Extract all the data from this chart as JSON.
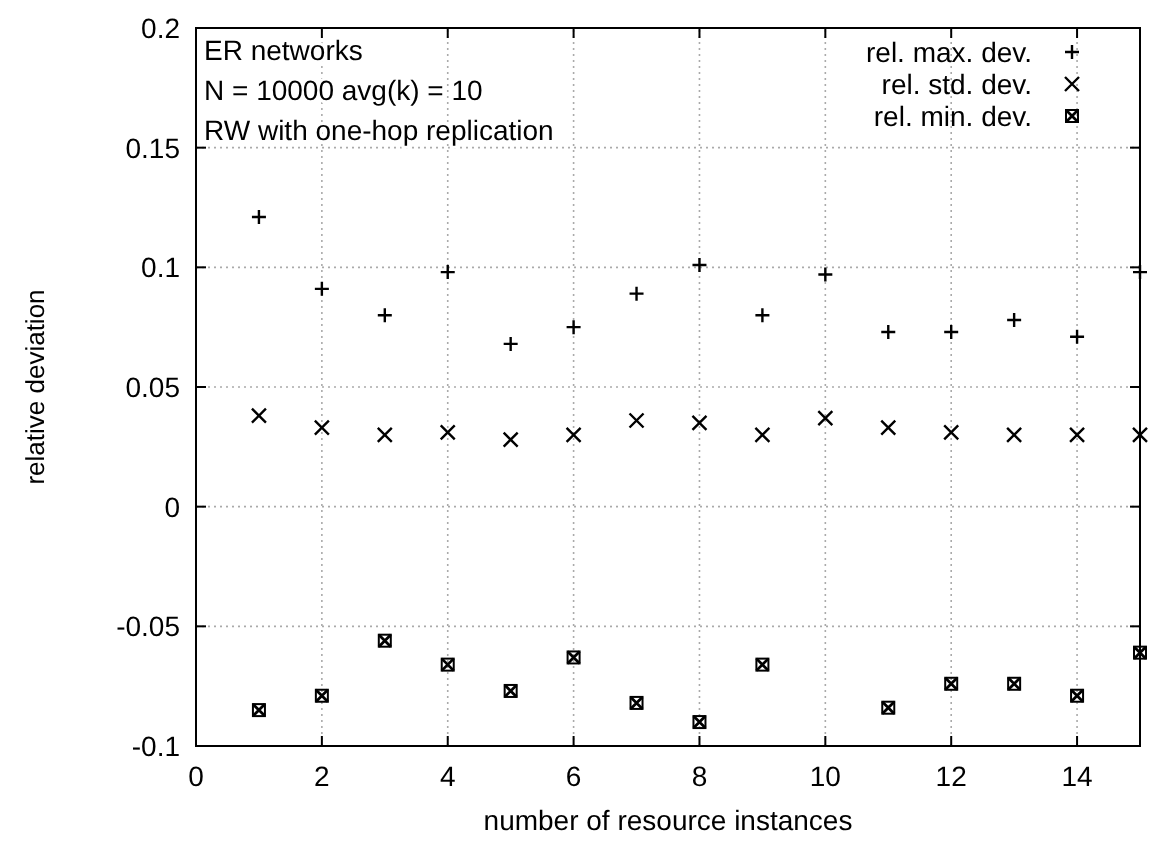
{
  "chart_data": {
    "type": "scatter",
    "xlabel": "number of resource instances",
    "ylabel": "relative deviation",
    "annotations": [
      "ER networks",
      "N = 10000   avg(k) = 10",
      "RW with one-hop replication"
    ],
    "x": [
      1,
      2,
      3,
      4,
      5,
      6,
      7,
      8,
      9,
      10,
      11,
      12,
      13,
      14,
      15
    ],
    "series": [
      {
        "name": "rel. max. dev.",
        "color": "#000000",
        "marker": "cross",
        "values": [
          0.121,
          0.091,
          0.08,
          0.098,
          0.068,
          0.075,
          0.089,
          0.101,
          0.08,
          0.097,
          0.073,
          0.073,
          0.078,
          0.071,
          0.098
        ]
      },
      {
        "name": "rel. std. dev.",
        "color": "#000000",
        "marker": "x",
        "values": [
          0.038,
          0.033,
          0.03,
          0.031,
          0.028,
          0.03,
          0.036,
          0.035,
          0.03,
          0.037,
          0.033,
          0.031,
          0.03,
          0.03,
          0.03
        ]
      },
      {
        "name": "rel. min. dev.",
        "color": "#000000",
        "marker": "square",
        "values": [
          -0.085,
          -0.079,
          -0.056,
          -0.066,
          -0.077,
          -0.063,
          -0.082,
          -0.09,
          -0.066,
          null,
          -0.084,
          -0.074,
          -0.074,
          -0.079,
          -0.061
        ]
      }
    ],
    "xlim": [
      0,
      15
    ],
    "xticks": [
      0,
      2,
      4,
      6,
      8,
      10,
      12,
      14
    ],
    "ylim": [
      -0.1,
      0.2
    ],
    "yticks": [
      -0.1,
      -0.05,
      0,
      0.05,
      0.1,
      0.15,
      0.2
    ],
    "grid": true,
    "legend": "top right"
  }
}
